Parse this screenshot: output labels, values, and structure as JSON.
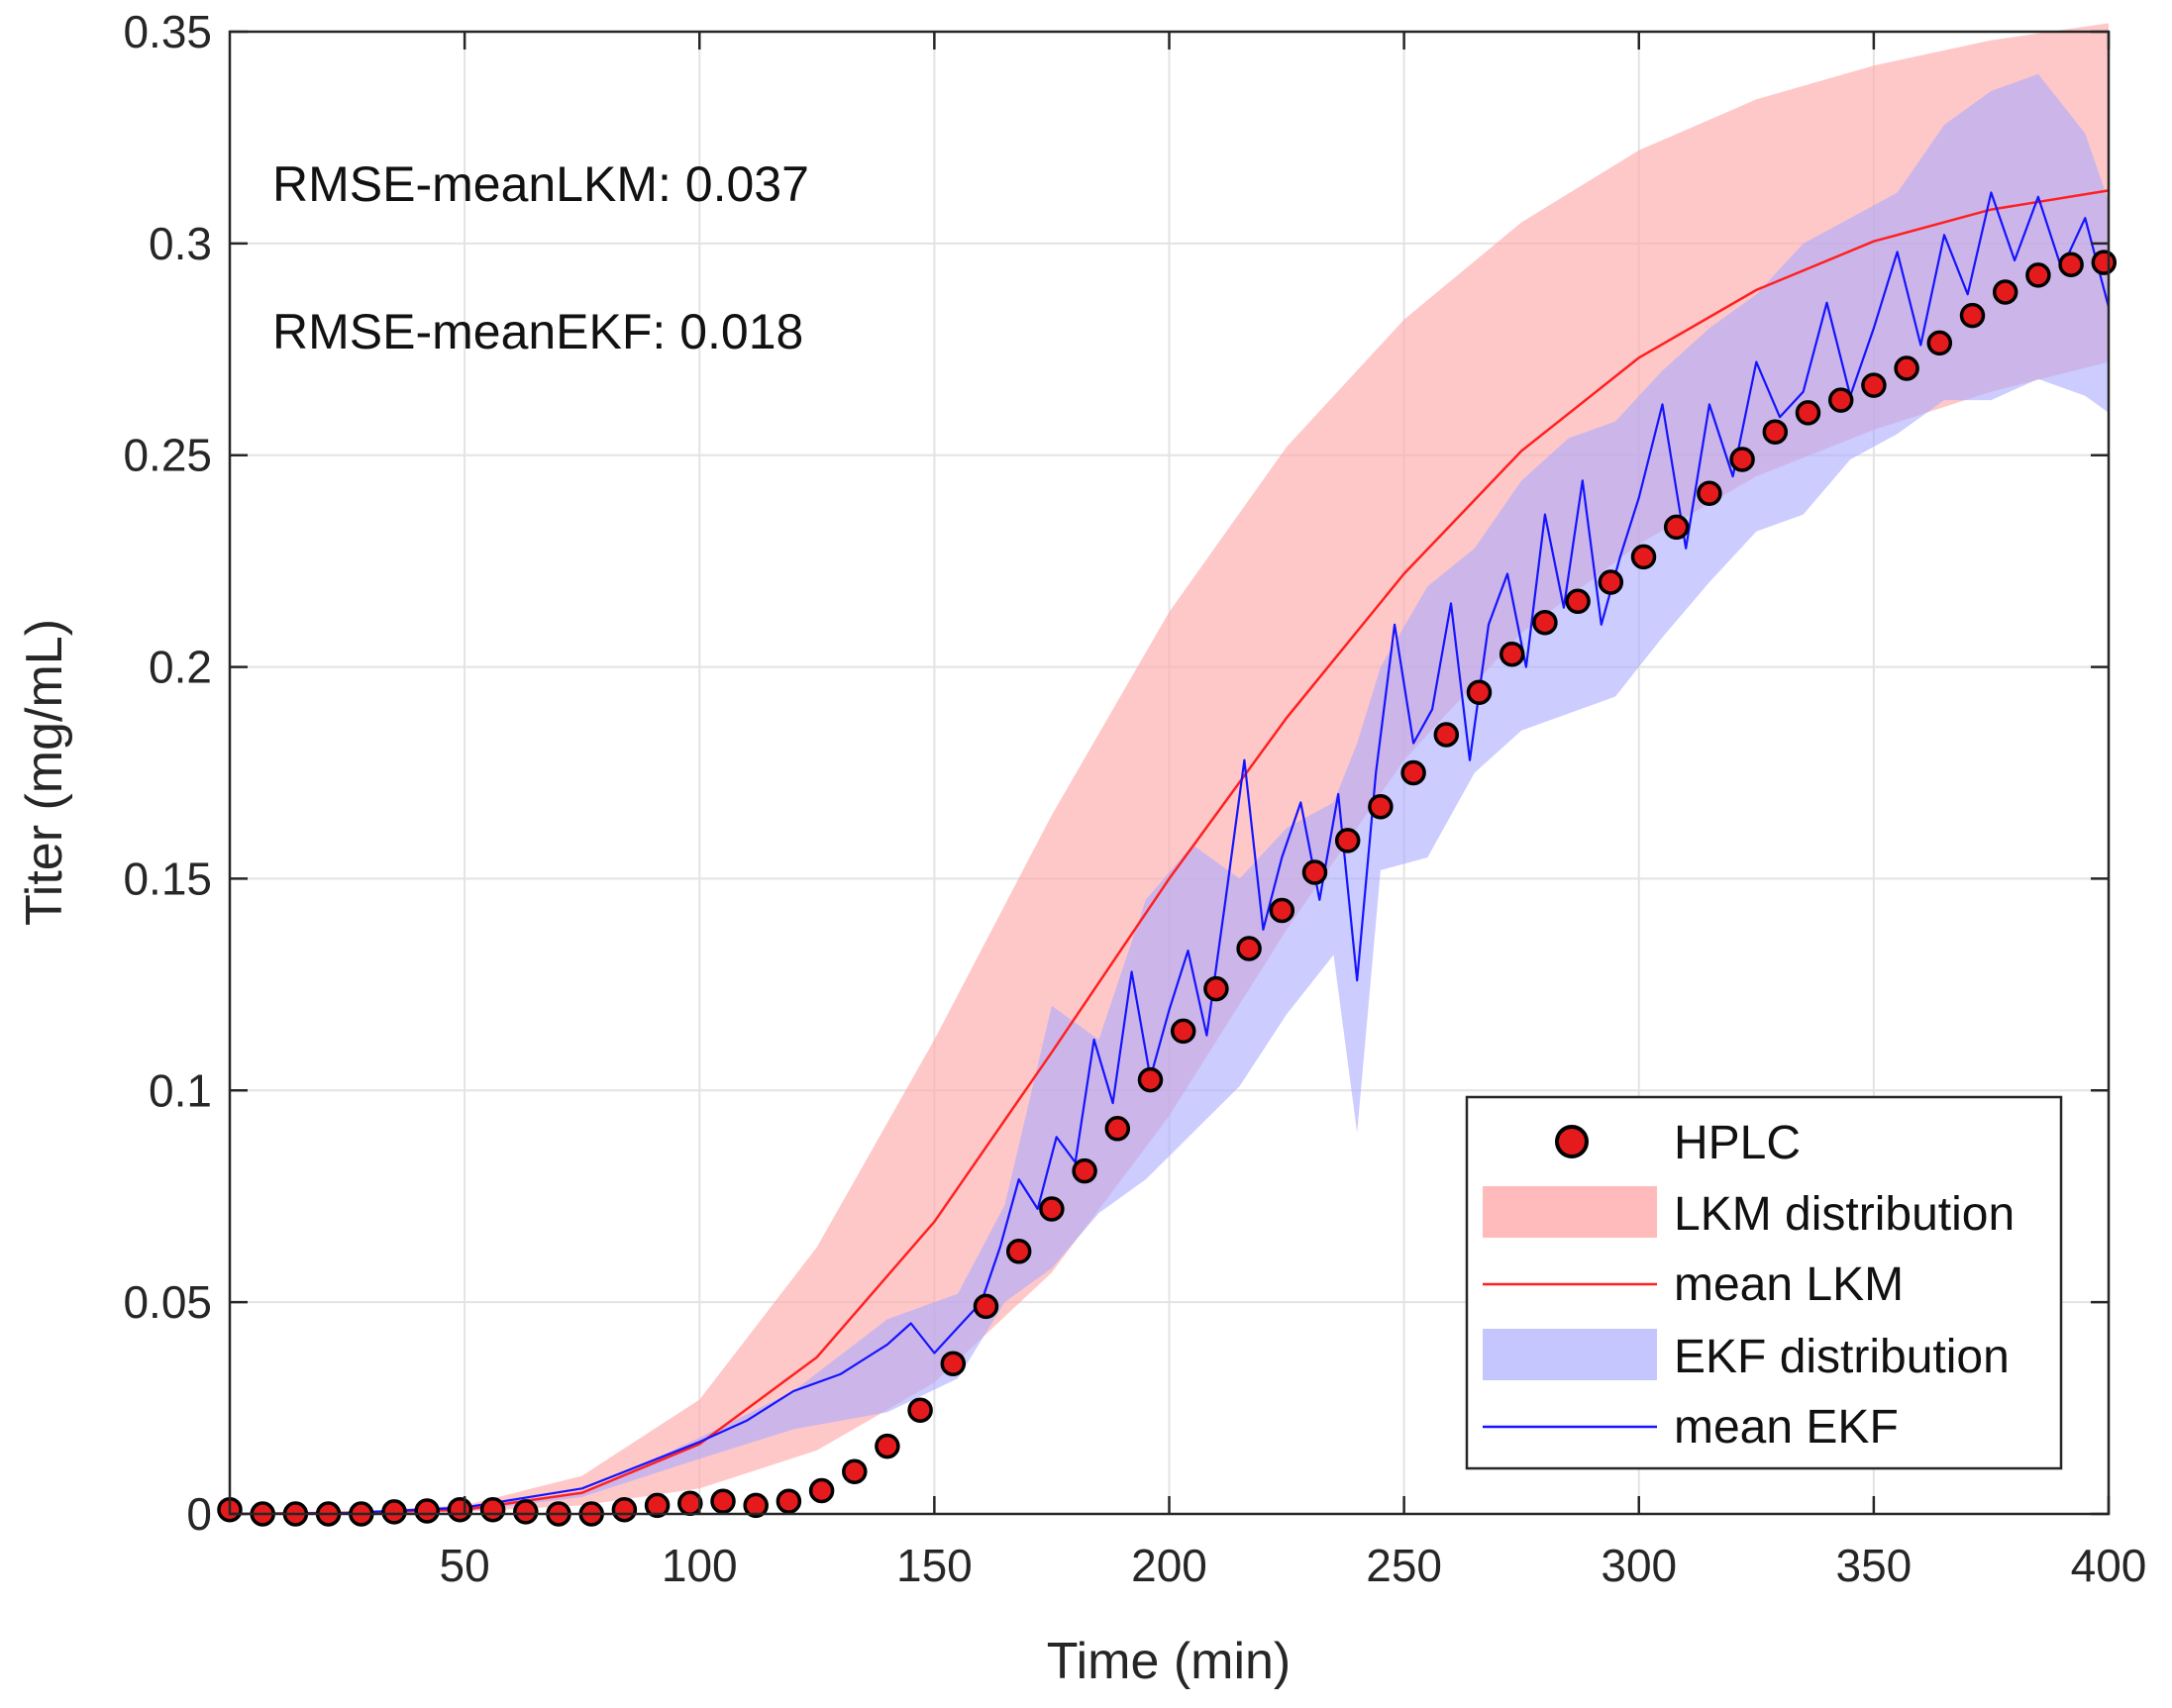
{
  "chart_data": {
    "type": "line",
    "xlabel": "Time (min)",
    "ylabel": "Titer (mg/mL)",
    "xlim": [
      0,
      400
    ],
    "ylim": [
      0,
      0.35
    ],
    "xticks": [
      50,
      100,
      150,
      200,
      250,
      300,
      350,
      400
    ],
    "xtick_labels": [
      "50",
      "100",
      "150",
      "200",
      "250",
      "300",
      "350",
      "400"
    ],
    "yticks": [
      0,
      0.05,
      0.1,
      0.15,
      0.2,
      0.25,
      0.3,
      0.35
    ],
    "ytick_labels": [
      "0",
      "0.05",
      "0.1",
      "0.15",
      "0.2",
      "0.25",
      "0.3",
      "0.35"
    ],
    "grid": true,
    "annotations": [
      "RMSE-meanLKM: 0.037",
      "RMSE-meanEKF: 0.018"
    ],
    "legend_position": "bottom-right",
    "series": [
      {
        "name": "HPLC",
        "kind": "scatter",
        "color": "#e41a1c",
        "x": [
          0,
          7,
          14,
          21,
          28,
          35,
          42,
          49,
          56,
          63,
          70,
          77,
          84,
          91,
          98,
          105,
          112,
          119,
          126,
          133,
          140,
          147,
          154,
          161,
          168,
          175,
          182,
          189,
          196,
          203,
          210,
          217,
          224,
          231,
          238,
          245,
          252,
          259,
          266,
          273,
          280,
          287,
          294,
          301,
          308,
          315,
          322,
          329,
          336,
          343,
          350,
          357,
          364,
          371,
          378,
          385,
          392,
          399
        ],
        "values": [
          0.001,
          0.0,
          0.0,
          0.0,
          0.0,
          0.0005,
          0.0007,
          0.001,
          0.001,
          0.0005,
          0.0,
          0.0,
          0.001,
          0.002,
          0.0025,
          0.003,
          0.002,
          0.003,
          0.0055,
          0.01,
          0.016,
          0.0245,
          0.0355,
          0.049,
          0.062,
          0.072,
          0.081,
          0.091,
          0.1025,
          0.114,
          0.124,
          0.1335,
          0.1425,
          0.1515,
          0.159,
          0.167,
          0.175,
          0.184,
          0.194,
          0.203,
          0.2105,
          0.2155,
          0.22,
          0.226,
          0.233,
          0.241,
          0.249,
          0.2555,
          0.26,
          0.263,
          0.2665,
          0.2705,
          0.2765,
          0.283,
          0.2885,
          0.2925,
          0.295,
          0.2955
        ]
      },
      {
        "name": "LKM distribution",
        "kind": "band",
        "color": "#ffaaaa",
        "x": [
          0,
          25,
          50,
          75,
          100,
          125,
          150,
          175,
          200,
          225,
          250,
          275,
          300,
          325,
          350,
          375,
          400
        ],
        "lower": [
          0,
          0.0,
          0.0005,
          0.002,
          0.006,
          0.015,
          0.031,
          0.057,
          0.094,
          0.138,
          0.178,
          0.208,
          0.229,
          0.245,
          0.256,
          0.265,
          0.272
        ],
        "upper": [
          0,
          0.0005,
          0.002,
          0.009,
          0.027,
          0.063,
          0.112,
          0.165,
          0.213,
          0.252,
          0.282,
          0.305,
          0.322,
          0.334,
          0.342,
          0.348,
          0.352
        ]
      },
      {
        "name": "mean LKM",
        "kind": "line",
        "color": "#ff2020",
        "x": [
          0,
          25,
          50,
          75,
          100,
          125,
          150,
          175,
          200,
          225,
          250,
          275,
          300,
          325,
          350,
          375,
          400
        ],
        "values": [
          0,
          0.0003,
          0.001,
          0.005,
          0.0165,
          0.037,
          0.069,
          0.109,
          0.15,
          0.188,
          0.222,
          0.251,
          0.273,
          0.289,
          0.3005,
          0.308,
          0.3125
        ]
      },
      {
        "name": "EKF distribution",
        "kind": "band",
        "color": "#aaaaff",
        "x": [
          0,
          25,
          50,
          75,
          100,
          120,
          140,
          155,
          165,
          175,
          185,
          195,
          205,
          215,
          225,
          235,
          240,
          245,
          255,
          265,
          275,
          285,
          295,
          305,
          315,
          325,
          335,
          345,
          355,
          365,
          375,
          385,
          395,
          400
        ],
        "lower": [
          0,
          0.0,
          0.0005,
          0.004,
          0.013,
          0.02,
          0.024,
          0.032,
          0.05,
          0.058,
          0.071,
          0.079,
          0.09,
          0.101,
          0.118,
          0.132,
          0.09,
          0.152,
          0.155,
          0.175,
          0.185,
          0.189,
          0.193,
          0.207,
          0.22,
          0.232,
          0.236,
          0.249,
          0.255,
          0.263,
          0.263,
          0.268,
          0.264,
          0.26
        ],
        "upper": [
          0,
          0.0005,
          0.002,
          0.005,
          0.018,
          0.029,
          0.046,
          0.052,
          0.073,
          0.12,
          0.112,
          0.145,
          0.158,
          0.15,
          0.162,
          0.168,
          0.182,
          0.2,
          0.219,
          0.228,
          0.244,
          0.254,
          0.258,
          0.27,
          0.28,
          0.288,
          0.3,
          0.306,
          0.312,
          0.328,
          0.336,
          0.34,
          0.326,
          0.31
        ]
      },
      {
        "name": "mean EKF",
        "kind": "line",
        "color": "#1414ff",
        "x": [
          0,
          25,
          50,
          75,
          100,
          110,
          120,
          130,
          140,
          145,
          150,
          155,
          160,
          164,
          168,
          172,
          176,
          180,
          184,
          188,
          192,
          196,
          200,
          204,
          208,
          212,
          216,
          220,
          224,
          228,
          232,
          236,
          240,
          244,
          248,
          252,
          256,
          260,
          264,
          268,
          272,
          276,
          280,
          284,
          288,
          292,
          296,
          300,
          305,
          310,
          315,
          320,
          325,
          330,
          335,
          340,
          345,
          350,
          355,
          360,
          365,
          370,
          375,
          380,
          385,
          390,
          395,
          400
        ],
        "values": [
          0,
          0.0002,
          0.0015,
          0.006,
          0.017,
          0.022,
          0.029,
          0.033,
          0.04,
          0.045,
          0.038,
          0.044,
          0.05,
          0.063,
          0.079,
          0.072,
          0.089,
          0.083,
          0.112,
          0.097,
          0.128,
          0.103,
          0.119,
          0.133,
          0.113,
          0.145,
          0.178,
          0.138,
          0.155,
          0.168,
          0.145,
          0.17,
          0.126,
          0.175,
          0.21,
          0.182,
          0.19,
          0.215,
          0.178,
          0.21,
          0.222,
          0.2,
          0.236,
          0.214,
          0.244,
          0.21,
          0.226,
          0.24,
          0.262,
          0.228,
          0.262,
          0.245,
          0.272,
          0.259,
          0.265,
          0.286,
          0.264,
          0.28,
          0.298,
          0.276,
          0.302,
          0.288,
          0.312,
          0.296,
          0.311,
          0.294,
          0.306,
          0.285
        ]
      }
    ]
  }
}
